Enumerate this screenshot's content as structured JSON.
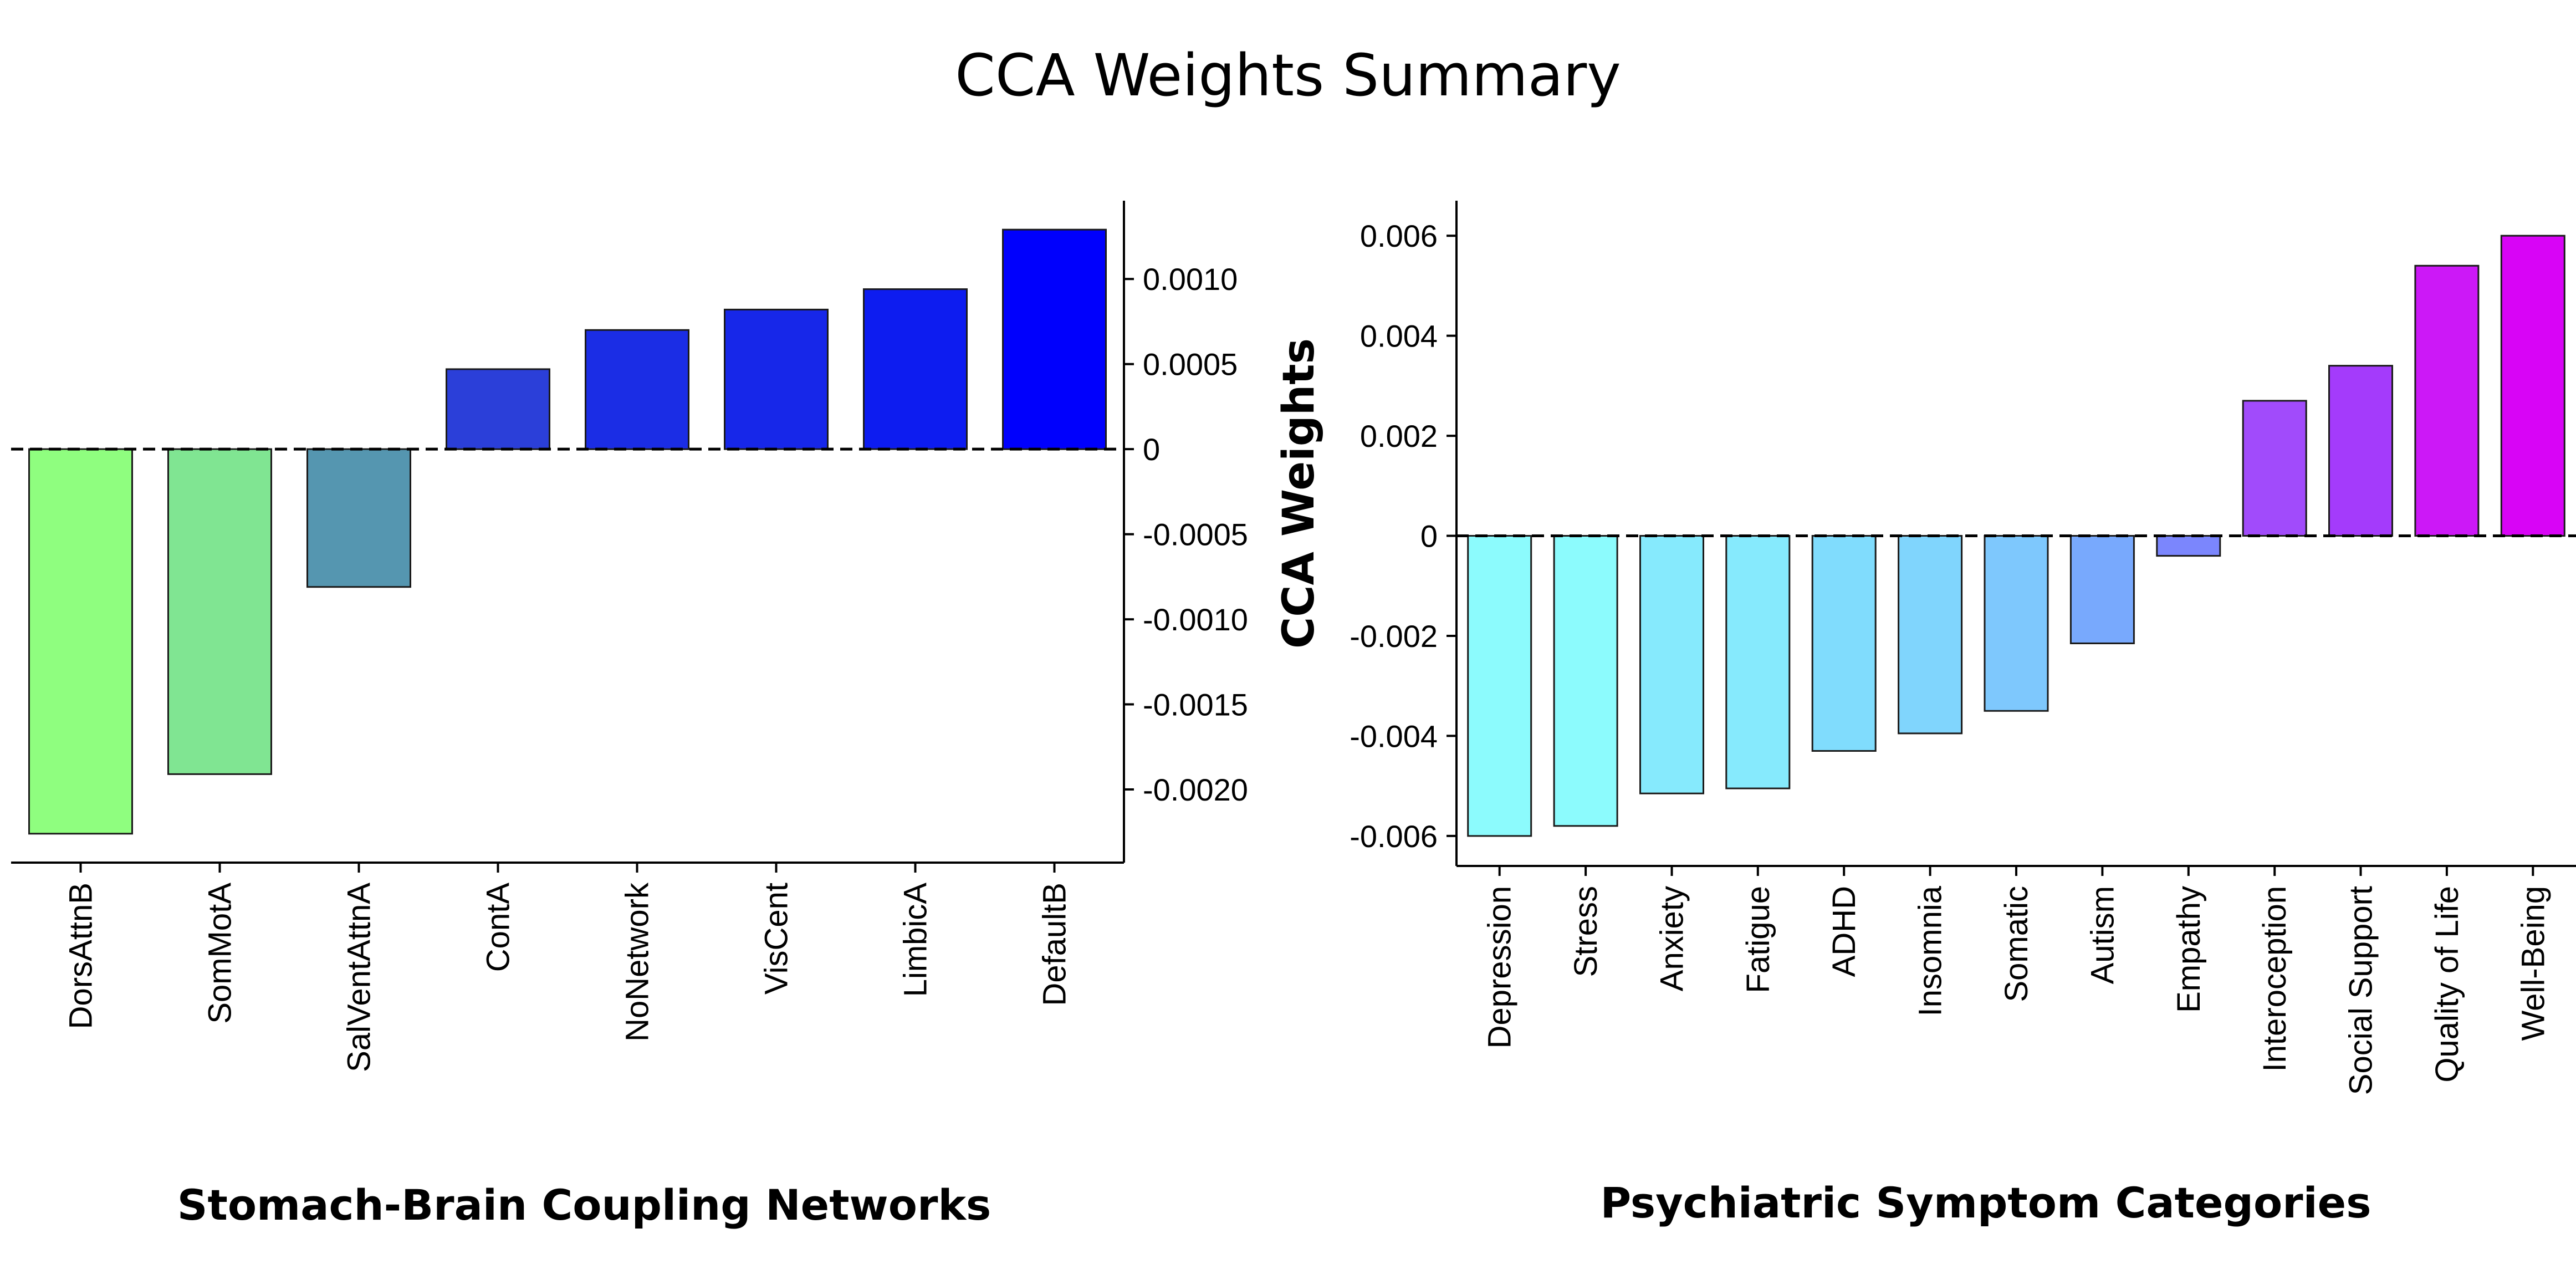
{
  "title": "CCA Weights Summary",
  "chart_data": [
    {
      "type": "bar",
      "xlabel": "Stomach-Brain Coupling Networks",
      "ylabel": "",
      "categories": [
        "DorsAttnB",
        "SomMotA",
        "SalVentAttnA",
        "ContA",
        "NoNetwork",
        "VisCent",
        "LimbicA",
        "DefaultB"
      ],
      "values": [
        -0.00226,
        -0.00191,
        -0.00081,
        0.00047,
        0.0007,
        0.00082,
        0.00094,
        0.00129
      ],
      "colors": [
        "#8ffe7f",
        "#80e592",
        "#5596b0",
        "#2b3fd9",
        "#1b2de5",
        "#1727e9",
        "#0d1cf0",
        "#0000fd"
      ],
      "ylim": [
        -0.00243,
        0.00146
      ],
      "yticks": [
        0.001,
        0.0005,
        0,
        -0.0005,
        -0.001,
        -0.0015,
        -0.002
      ],
      "ytick_labels": [
        "0.0010",
        "0.0005",
        "0",
        "-0.0005",
        "-0.0010",
        "-0.0015",
        "-0.0020"
      ],
      "yaxis_side": "right",
      "zero_line": "dashed",
      "grid": false
    },
    {
      "type": "bar",
      "xlabel": "Psychiatric Symptom Categories",
      "ylabel": "CCA Weights",
      "categories": [
        "Depression",
        "Stress",
        "Anxiety",
        "Fatigue",
        "ADHD",
        "Insomnia",
        "Somatic",
        "Autism",
        "Empathy",
        "Interoception",
        "Social Support",
        "Quality of Life",
        "Well-Being"
      ],
      "values": [
        -0.006,
        -0.0058,
        -0.00515,
        -0.00505,
        -0.0043,
        -0.00395,
        -0.0035,
        -0.00215,
        -0.0004,
        0.0027,
        0.0034,
        0.0054,
        0.006
      ],
      "colors": [
        "#8cfbfd",
        "#8cfbfd",
        "#86eafd",
        "#86eafd",
        "#80dcfd",
        "#80d5fd",
        "#7ec8fd",
        "#78a9fd",
        "#7b86fd",
        "#a14bfb",
        "#a43bfb",
        "#cc18f7",
        "#d804f6"
      ],
      "ylim": [
        -0.0066,
        0.0067
      ],
      "yticks": [
        0.006,
        0.004,
        0.002,
        0,
        -0.002,
        -0.004,
        -0.006
      ],
      "ytick_labels": [
        "0.006",
        "0.004",
        "0.002",
        "0",
        "-0.002",
        "-0.004",
        "-0.006"
      ],
      "yaxis_side": "left",
      "zero_line": "dashed",
      "grid": false
    }
  ]
}
